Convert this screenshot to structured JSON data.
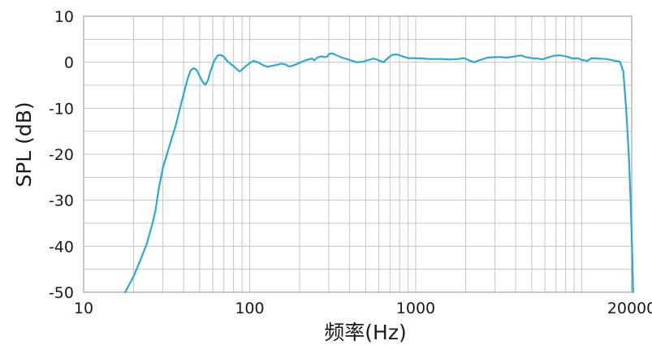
{
  "chart_data": {
    "type": "line",
    "xlabel": "频率(Hz)",
    "ylabel": "SPL (dB)",
    "x_scale": "log",
    "xlim": [
      10,
      20000
    ],
    "ylim": [
      -50,
      10
    ],
    "grid": true,
    "x_ticks": [
      {
        "value": 10,
        "label": "10"
      },
      {
        "value": 100,
        "label": "100"
      },
      {
        "value": 1000,
        "label": "1000"
      },
      {
        "value": 20000,
        "label": "20000"
      }
    ],
    "y_ticks": [
      {
        "value": 10,
        "label": "10"
      },
      {
        "value": 0,
        "label": "0"
      },
      {
        "value": -10,
        "label": "-10"
      },
      {
        "value": -20,
        "label": "-20"
      },
      {
        "value": -30,
        "label": "-30"
      },
      {
        "value": -40,
        "label": "-40"
      },
      {
        "value": -50,
        "label": "-50"
      }
    ],
    "y_minor_ticks": [
      5,
      -5,
      -15,
      -25,
      -35,
      -45
    ],
    "series": [
      {
        "color": "#2aa8dc",
        "points": [
          [
            17.8,
            -50
          ],
          [
            20,
            -46.5
          ],
          [
            22,
            -43
          ],
          [
            24,
            -39.5
          ],
          [
            26,
            -35
          ],
          [
            27,
            -32.5
          ],
          [
            28.5,
            -27
          ],
          [
            30,
            -23
          ],
          [
            33,
            -18
          ],
          [
            36,
            -13.5
          ],
          [
            39,
            -8.5
          ],
          [
            42,
            -4
          ],
          [
            44,
            -1.8
          ],
          [
            46,
            -1.3
          ],
          [
            48,
            -1.7
          ],
          [
            50,
            -3
          ],
          [
            52,
            -4.2
          ],
          [
            54,
            -4.9
          ],
          [
            56,
            -4
          ],
          [
            58,
            -2
          ],
          [
            61,
            0.2
          ],
          [
            64,
            1.4
          ],
          [
            67,
            1.6
          ],
          [
            70,
            1.2
          ],
          [
            73,
            0.3
          ],
          [
            77,
            -0.4
          ],
          [
            81,
            -1
          ],
          [
            84,
            -1.6
          ],
          [
            87,
            -2
          ],
          [
            90,
            -1.6
          ],
          [
            95,
            -0.8
          ],
          [
            100,
            -0.2
          ],
          [
            105,
            0.3
          ],
          [
            112,
            0
          ],
          [
            120,
            -0.6
          ],
          [
            128,
            -1
          ],
          [
            135,
            -0.8
          ],
          [
            145,
            -0.6
          ],
          [
            155,
            -0.3
          ],
          [
            165,
            -0.5
          ],
          [
            172,
            -0.9
          ],
          [
            180,
            -0.8
          ],
          [
            195,
            -0.3
          ],
          [
            210,
            0.2
          ],
          [
            225,
            0.6
          ],
          [
            238,
            0.8
          ],
          [
            245,
            0.4
          ],
          [
            255,
            1
          ],
          [
            270,
            1.3
          ],
          [
            285,
            1.1
          ],
          [
            295,
            1.3
          ],
          [
            300,
            1.8
          ],
          [
            315,
            1.9
          ],
          [
            335,
            1.5
          ],
          [
            360,
            1
          ],
          [
            400,
            0.5
          ],
          [
            440,
            0
          ],
          [
            480,
            0.1
          ],
          [
            520,
            0.5
          ],
          [
            560,
            0.8
          ],
          [
            600,
            0.4
          ],
          [
            640,
            0
          ],
          [
            680,
            0.9
          ],
          [
            720,
            1.6
          ],
          [
            770,
            1.7
          ],
          [
            830,
            1.3
          ],
          [
            900,
            0.9
          ],
          [
            1000,
            0.9
          ],
          [
            1100,
            0.8
          ],
          [
            1200,
            0.7
          ],
          [
            1300,
            0.7
          ],
          [
            1450,
            0.7
          ],
          [
            1600,
            0.6
          ],
          [
            1800,
            0.7
          ],
          [
            1950,
            0.9
          ],
          [
            2100,
            0.4
          ],
          [
            2250,
            0
          ],
          [
            2400,
            0.4
          ],
          [
            2700,
            1
          ],
          [
            3000,
            1.1
          ],
          [
            3300,
            1.1
          ],
          [
            3500,
            1
          ],
          [
            3700,
            1.1
          ],
          [
            4000,
            1.3
          ],
          [
            4300,
            1.5
          ],
          [
            4600,
            1.1
          ],
          [
            5000,
            0.9
          ],
          [
            5400,
            0.8
          ],
          [
            5800,
            0.6
          ],
          [
            6200,
            1
          ],
          [
            6800,
            1.4
          ],
          [
            7500,
            1.5
          ],
          [
            8200,
            1.2
          ],
          [
            8800,
            0.8
          ],
          [
            9400,
            0.9
          ],
          [
            10000,
            0.5
          ],
          [
            10800,
            0.3
          ],
          [
            11500,
            0.9
          ],
          [
            12500,
            0.8
          ],
          [
            14000,
            0.7
          ],
          [
            15500,
            0.4
          ],
          [
            17000,
            0.1
          ],
          [
            17800,
            -2
          ],
          [
            18500,
            -10
          ],
          [
            19200,
            -20
          ],
          [
            19700,
            -30
          ],
          [
            20100,
            -40
          ],
          [
            20400,
            -50
          ]
        ]
      }
    ]
  }
}
